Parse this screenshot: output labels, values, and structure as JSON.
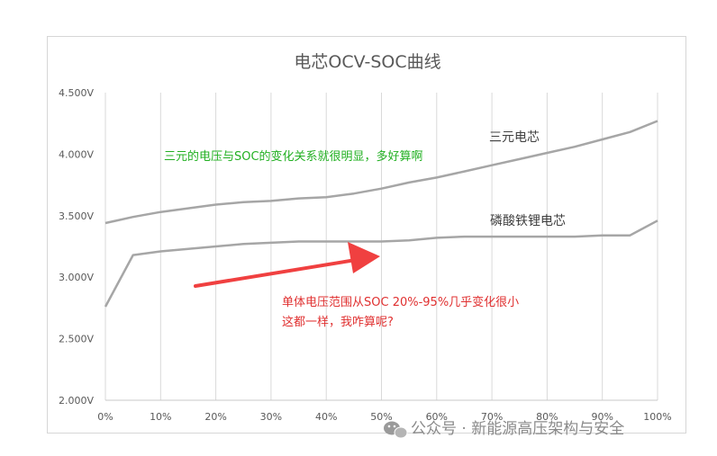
{
  "chart_data": {
    "type": "line",
    "title": "电芯OCV-SOC曲线",
    "x": [
      0,
      5,
      10,
      15,
      20,
      25,
      30,
      35,
      40,
      45,
      50,
      55,
      60,
      65,
      70,
      75,
      80,
      85,
      90,
      95,
      100
    ],
    "x_tick_labels": [
      "0%",
      "10%",
      "20%",
      "30%",
      "40%",
      "50%",
      "60%",
      "70%",
      "80%",
      "90%",
      "100%"
    ],
    "x_ticks": [
      0,
      10,
      20,
      30,
      40,
      50,
      60,
      70,
      80,
      90,
      100
    ],
    "xlim": [
      0,
      100
    ],
    "y_tick_labels": [
      "2.000V",
      "2.500V",
      "3.000V",
      "3.500V",
      "4.000V",
      "4.500V"
    ],
    "y_ticks": [
      2.0,
      2.5,
      3.0,
      3.5,
      4.0,
      4.5
    ],
    "ylim": [
      2.0,
      4.5
    ],
    "grid": "vertical",
    "series": [
      {
        "name": "三元电芯",
        "values": [
          3.44,
          3.49,
          3.53,
          3.56,
          3.59,
          3.61,
          3.62,
          3.64,
          3.65,
          3.68,
          3.72,
          3.77,
          3.81,
          3.86,
          3.91,
          3.96,
          4.01,
          4.06,
          4.12,
          4.18,
          4.27
        ]
      },
      {
        "name": "磷酸铁锂电芯",
        "values": [
          2.76,
          3.18,
          3.21,
          3.23,
          3.25,
          3.27,
          3.28,
          3.29,
          3.29,
          3.29,
          3.29,
          3.3,
          3.32,
          3.33,
          3.33,
          3.33,
          3.33,
          3.33,
          3.34,
          3.34,
          3.46
        ]
      }
    ],
    "color": "#a6a6a6",
    "annotations": [
      {
        "text": "三元的电压与SOC的变化关系就很明显，多好算啊",
        "color": "#22b022"
      },
      {
        "text": "单体电压范围从SOC 20%-95%几乎变化很小",
        "color": "#e03030"
      },
      {
        "text": "这都一样，我咋算呢?",
        "color": "#e03030"
      }
    ],
    "arrow_color": "#f04040"
  },
  "watermark": "公众号 · 新能源高压架构与安全"
}
